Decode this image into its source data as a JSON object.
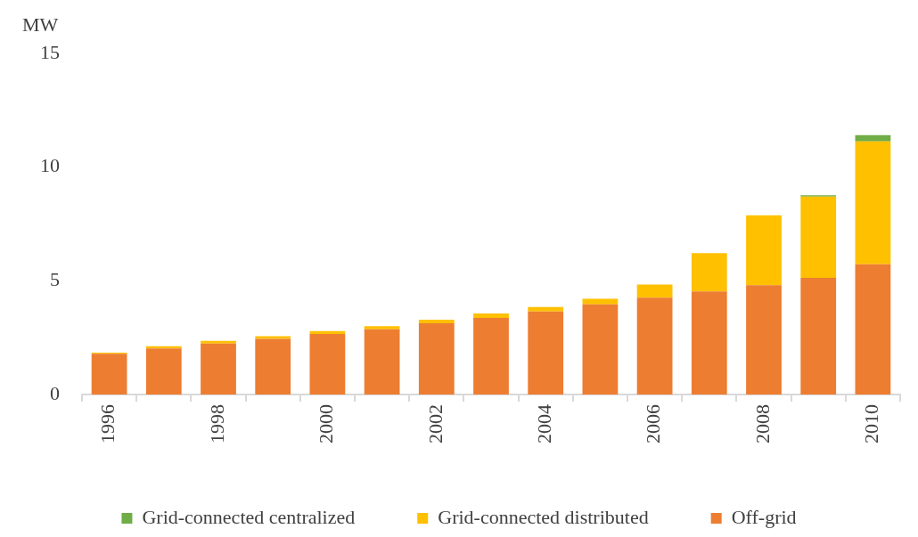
{
  "chart_data": {
    "type": "bar",
    "ylabel": "MW",
    "stacked": true,
    "categories": [
      "1996",
      null,
      "1998",
      null,
      "2000",
      null,
      "2002",
      null,
      "2004",
      null,
      "2006",
      null,
      "2008",
      null,
      "2010"
    ],
    "series": [
      {
        "name": "Off-grid",
        "color": "#ed7d31",
        "values": [
          1.79,
          2.03,
          2.24,
          2.45,
          2.66,
          2.87,
          3.13,
          3.37,
          3.65,
          3.97,
          4.26,
          4.53,
          4.81,
          5.13,
          5.73
        ]
      },
      {
        "name": "Grid-connected distributed",
        "color": "#ffc000",
        "values": [
          0.05,
          0.09,
          0.12,
          0.12,
          0.13,
          0.14,
          0.16,
          0.19,
          0.2,
          0.24,
          0.58,
          1.69,
          3.07,
          3.57,
          5.4
        ]
      },
      {
        "name": "Grid-connected centralized",
        "color": "#70ad47",
        "values": [
          null,
          null,
          null,
          null,
          null,
          null,
          null,
          null,
          null,
          null,
          null,
          null,
          null,
          0.06,
          0.28
        ]
      }
    ],
    "ylim": [
      0,
      15
    ],
    "yticks": [
      0,
      5,
      10,
      15
    ],
    "grid": false,
    "legend": "bottom"
  }
}
